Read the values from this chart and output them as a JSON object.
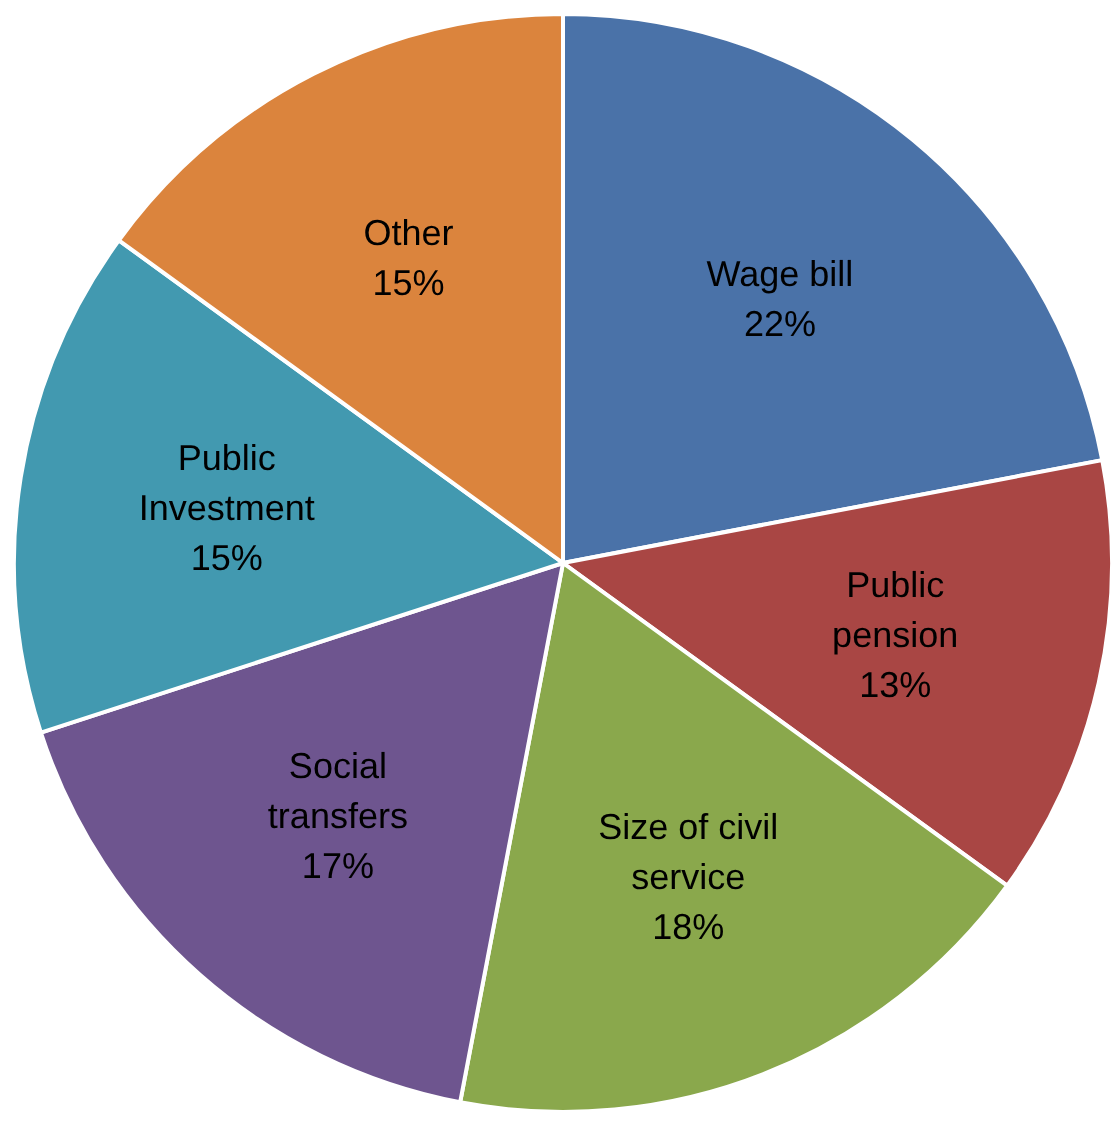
{
  "chart_data": {
    "type": "pie",
    "categories": [
      "Wage bill",
      "Public pension",
      "Size of civil service",
      "Social transfers",
      "Public Investment",
      "Other"
    ],
    "values": [
      22,
      13,
      18,
      17,
      15,
      15
    ],
    "colors": [
      "#4a72a8",
      "#a94644",
      "#8aa84c",
      "#6e558f",
      "#4299b0",
      "#db843d"
    ],
    "value_labels": [
      "22%",
      "13%",
      "18%",
      "17%",
      "15%",
      "15%"
    ],
    "legend": false
  }
}
